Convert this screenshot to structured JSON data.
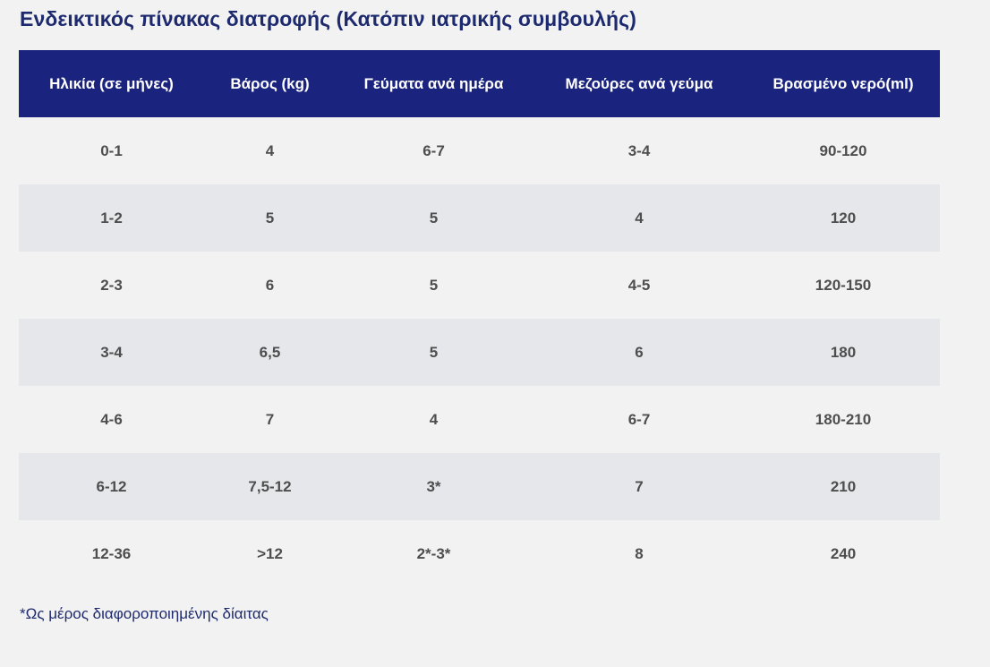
{
  "title": "Ενδεικτικός πίνακας διατροφής (Κατόπιν ιατρικής συμβουλής)",
  "table": {
    "headers": [
      "Ηλικία (σε μήνες)",
      "Βάρος (kg)",
      "Γεύματα ανά ημέρα",
      "Μεζούρες ανά γεύμα",
      "Βρασμένο νερό(ml)"
    ],
    "rows": [
      [
        "0-1",
        "4",
        "6-7",
        "3-4",
        "90-120"
      ],
      [
        "1-2",
        "5",
        "5",
        "4",
        "120"
      ],
      [
        "2-3",
        "6",
        "5",
        "4-5",
        "120-150"
      ],
      [
        "3-4",
        "6,5",
        "5",
        "6",
        "180"
      ],
      [
        "4-6",
        "7",
        "4",
        "6-7",
        "180-210"
      ],
      [
        "6-12",
        "7,5-12",
        "3*",
        "7",
        "210"
      ],
      [
        "12-36",
        ">12",
        "2*-3*",
        "8",
        "240"
      ]
    ]
  },
  "footnote": "*Ως μέρος διαφοροποιημένης δίαιτας",
  "colors": {
    "header_bg": "#1a237e",
    "title_text": "#1e2a6e",
    "row_alt_bg": "#e6e7ea",
    "page_bg": "#f2f2f2"
  }
}
